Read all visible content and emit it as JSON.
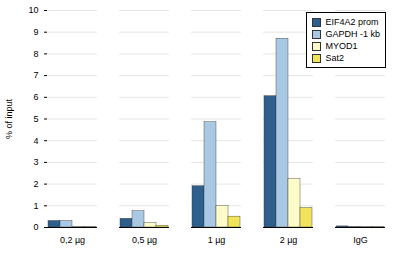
{
  "chart_data": {
    "type": "bar",
    "y_label": "% of input",
    "categories": [
      "0,2 µg",
      "0,5 µg",
      "1 µg",
      "2 µg",
      "IgG"
    ],
    "series": [
      {
        "name": "EIF4A2 prom",
        "color": "#2f5f8c",
        "values": [
          0.3,
          0.4,
          1.9,
          6.05,
          0.05
        ]
      },
      {
        "name": "GAPDH -1 kb",
        "color": "#a9c8e4",
        "values": [
          0.3,
          0.75,
          4.85,
          8.7,
          0.03
        ]
      },
      {
        "name": "MYOD1",
        "color": "#fdfbc8",
        "values": [
          0.02,
          0.2,
          1.0,
          2.25,
          0.01
        ]
      },
      {
        "name": "Sat2",
        "color": "#f2e45a",
        "values": [
          0.01,
          0.08,
          0.5,
          0.9,
          0.01
        ]
      }
    ],
    "ylim": [
      0,
      10
    ],
    "yticks": [
      0,
      1,
      2,
      3,
      4,
      5,
      6,
      7,
      8,
      9,
      10
    ],
    "grid": true,
    "legend": "top-right"
  }
}
